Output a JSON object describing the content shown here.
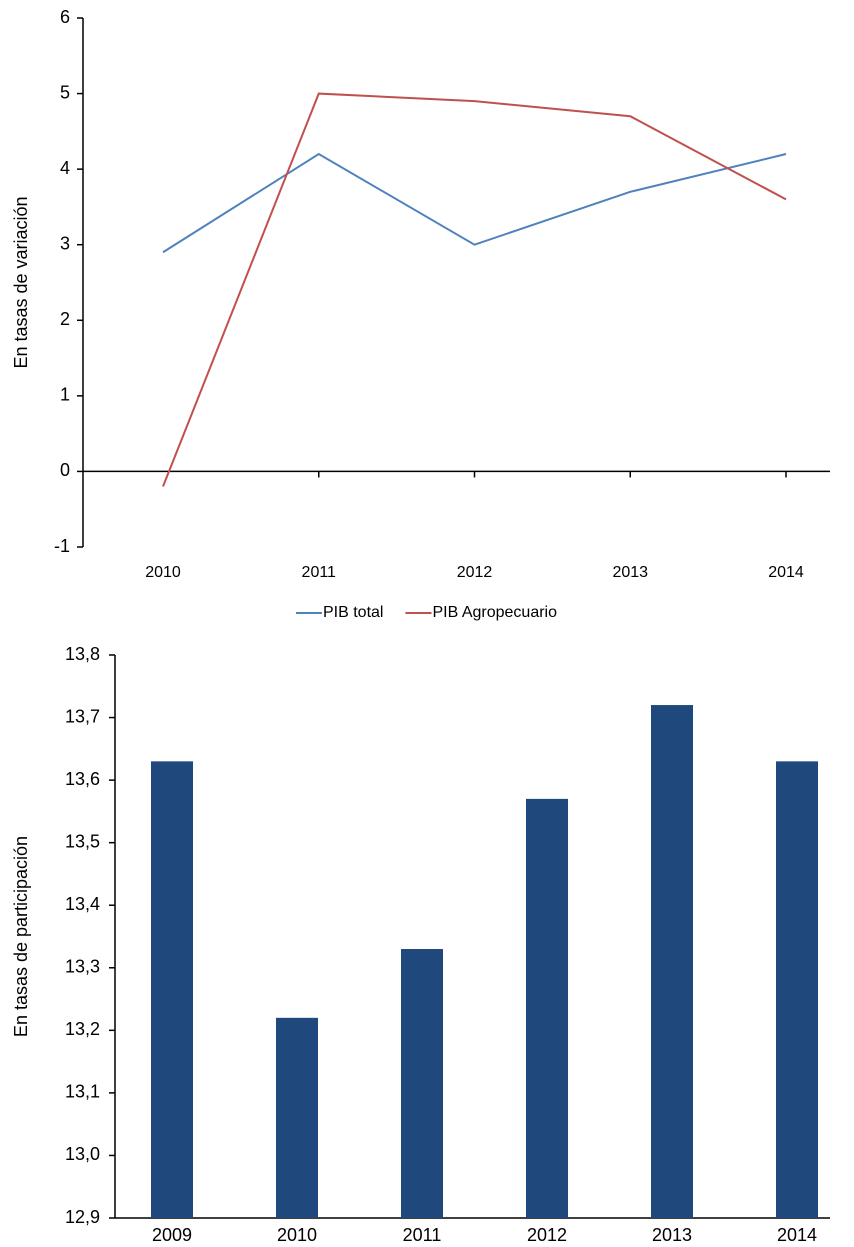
{
  "chart_data": [
    {
      "type": "line",
      "y_label": "En tasas de variación",
      "categories": [
        "2010",
        "2011",
        "2012",
        "2013",
        "2014"
      ],
      "series": [
        {
          "name": "PIB total",
          "color": "#4f81bd",
          "values": [
            2.9,
            4.2,
            3.0,
            3.7,
            4.2
          ]
        },
        {
          "name": "PIB Agropecuario",
          "color": "#c0504d",
          "values": [
            -0.2,
            5.0,
            4.9,
            4.7,
            3.6
          ]
        }
      ],
      "ylim": [
        -1,
        6
      ],
      "yticks": [
        -1,
        0,
        1,
        2,
        3,
        4,
        5,
        6
      ],
      "legend": "bottom"
    },
    {
      "type": "bar",
      "y_label": "En tasas de participación",
      "categories": [
        "2009",
        "2010",
        "2011",
        "2012",
        "2013",
        "2014"
      ],
      "values": [
        13.63,
        13.22,
        13.33,
        13.57,
        13.72,
        13.63
      ],
      "color": "#1f497d",
      "ylim": [
        12.9,
        13.8
      ],
      "yticks": [
        {
          "value": 12.9,
          "label": "12,9"
        },
        {
          "value": 13.0,
          "label": "13,0"
        },
        {
          "value": 13.1,
          "label": "13,1"
        },
        {
          "value": 13.2,
          "label": "13,2"
        },
        {
          "value": 13.3,
          "label": "13,3"
        },
        {
          "value": 13.4,
          "label": "13,4"
        },
        {
          "value": 13.5,
          "label": "13,5"
        },
        {
          "value": 13.6,
          "label": "13,6"
        },
        {
          "value": 13.7,
          "label": "13,7"
        },
        {
          "value": 13.8,
          "label": "13,8"
        }
      ]
    }
  ]
}
